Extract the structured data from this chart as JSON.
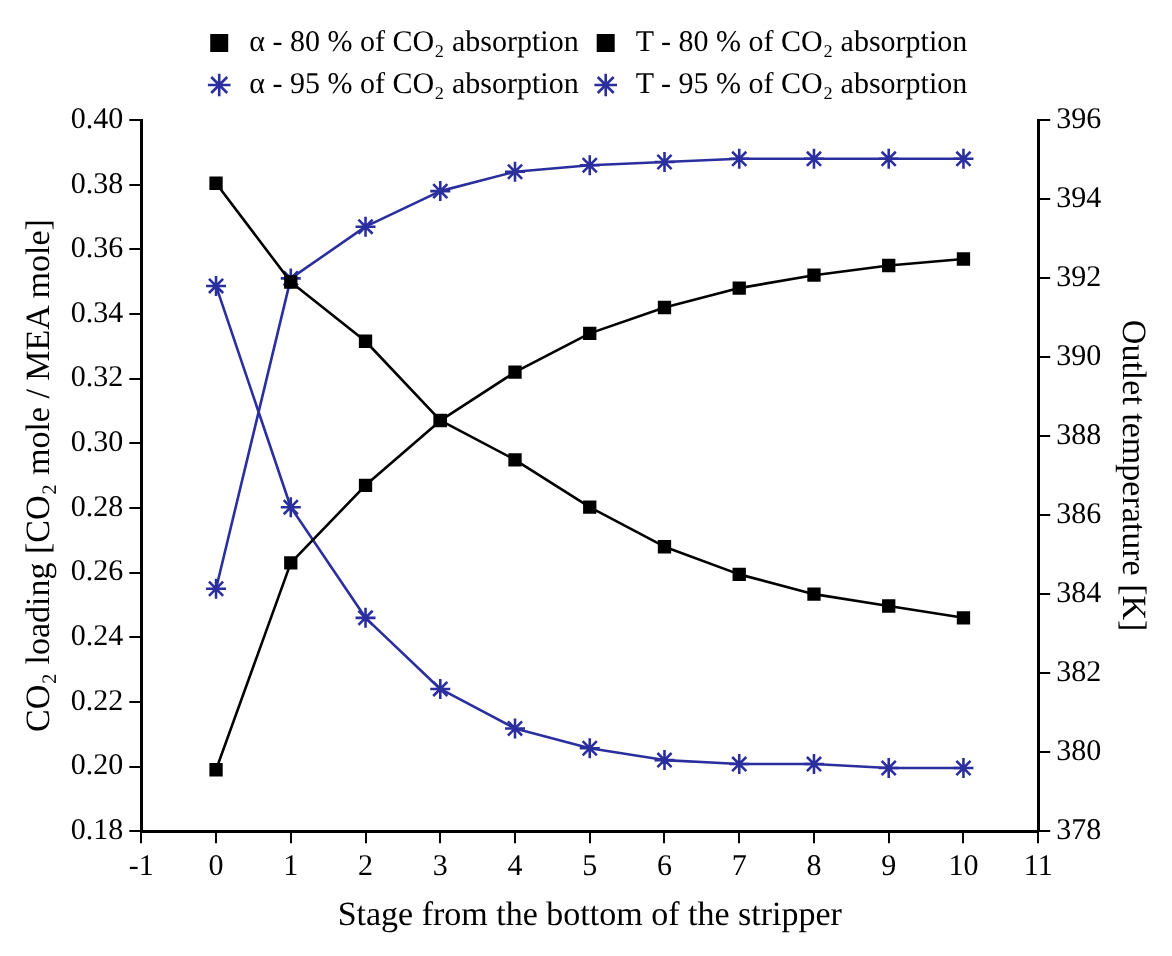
{
  "chart_data": {
    "type": "line",
    "xlabel": "Stage from the bottom of the stripper",
    "ylabel": "CO₂ loading [CO₂ mole / MEA mole]",
    "y2label": "Outlet temperature [K]",
    "x": [
      0,
      1,
      2,
      3,
      4,
      5,
      6,
      7,
      8,
      9,
      10
    ],
    "series": [
      {
        "name": "α - 80 % of CO₂ absorption",
        "color": "#000000",
        "marker": "square",
        "values": [
          0.199,
          0.263,
          0.287,
          0.307,
          0.322,
          0.334,
          0.342,
          0.348,
          0.352,
          0.355,
          0.357
        ]
      },
      {
        "name": "T - 80 % of CO₂ absorption",
        "color": "#000000",
        "marker": "square",
        "axis": "y2",
        "values": [
          394.4,
          391.9,
          390.4,
          388.4,
          387.4,
          386.2,
          385.2,
          384.5,
          384.0,
          383.7,
          383.4
        ]
      },
      {
        "name": "α - 95 % of CO₂ absorption",
        "color": "#2b2f9e",
        "marker": "cross",
        "values": [
          0.255,
          0.351,
          0.367,
          0.378,
          0.384,
          0.386,
          0.387,
          0.388,
          0.388,
          0.388,
          0.388
        ]
      },
      {
        "name": "T - 95 % of CO₂ absorption",
        "color": "#2b2f9e",
        "marker": "cross",
        "axis": "y2",
        "values": [
          391.8,
          386.2,
          383.4,
          381.6,
          380.6,
          380.1,
          379.8,
          379.7,
          379.7,
          379.6,
          379.6
        ]
      }
    ],
    "xlim": [
      -1,
      11
    ],
    "xticks": [
      -1,
      0,
      1,
      2,
      3,
      4,
      5,
      6,
      7,
      8,
      9,
      10,
      11
    ],
    "ylim": [
      0.18,
      0.4
    ],
    "yticks": [
      0.18,
      {
        "value": 0.2,
        "label": "0.20"
      },
      0.22,
      0.24,
      0.26,
      0.28,
      {
        "value": 0.3,
        "label": "0.30"
      },
      0.32,
      0.34,
      0.36,
      0.38,
      {
        "value": 0.4,
        "label": "0.40"
      }
    ],
    "y2lim": [
      378,
      396
    ],
    "y2ticks": [
      378,
      380,
      382,
      384,
      386,
      388,
      390,
      392,
      394,
      396
    ],
    "grid": false,
    "legend": "top",
    "line_style": "solid"
  }
}
